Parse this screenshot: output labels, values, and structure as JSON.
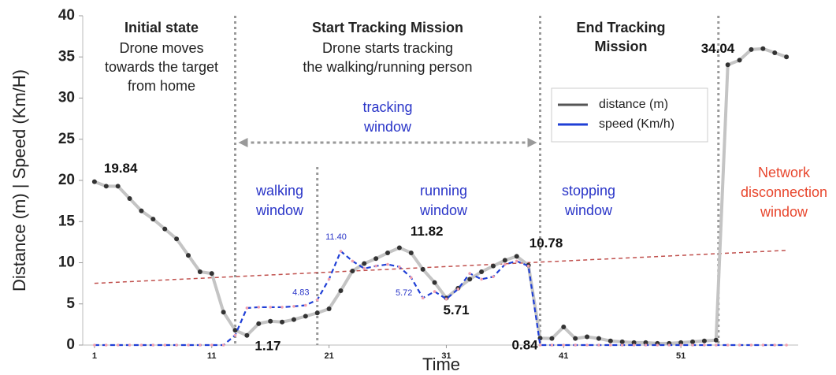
{
  "chart_data": {
    "type": "line",
    "x_label": "Time",
    "y_label": "Distance (m) | Speed (Km/H)",
    "xlim": [
      0,
      61
    ],
    "ylim": [
      0,
      40
    ],
    "xticks": [
      1,
      11,
      21,
      31,
      41,
      51
    ],
    "yticks": [
      0,
      5,
      10,
      15,
      20,
      25,
      30,
      35,
      40
    ],
    "x": [
      1,
      2,
      3,
      4,
      5,
      6,
      7,
      8,
      9,
      10,
      11,
      12,
      13,
      14,
      15,
      16,
      17,
      18,
      19,
      20,
      21,
      22,
      23,
      24,
      25,
      26,
      27,
      28,
      29,
      30,
      31,
      32,
      33,
      34,
      35,
      36,
      37,
      38,
      39,
      40,
      41,
      42,
      43,
      44,
      45,
      46,
      47,
      48,
      49,
      50,
      51,
      52,
      53,
      54,
      55,
      56,
      57,
      58,
      59,
      60
    ],
    "series": [
      {
        "name": "distance (m)",
        "color": "#c4c4c4",
        "marker_color": "#333333",
        "legend_color": "#555555",
        "values": [
          19.84,
          19.3,
          19.3,
          17.8,
          16.3,
          15.3,
          14.1,
          12.9,
          10.9,
          8.9,
          8.7,
          4.0,
          1.8,
          1.17,
          2.6,
          2.9,
          2.8,
          3.1,
          3.5,
          3.9,
          4.4,
          6.6,
          9.0,
          9.9,
          10.5,
          11.2,
          11.82,
          11.2,
          9.2,
          7.6,
          5.71,
          6.9,
          8.0,
          8.9,
          9.6,
          10.3,
          10.78,
          9.7,
          0.84,
          0.8,
          2.2,
          0.8,
          1.0,
          0.8,
          0.5,
          0.4,
          0.3,
          0.3,
          0.2,
          0.2,
          0.3,
          0.4,
          0.5,
          0.6,
          34.04,
          34.6,
          35.9,
          36.0,
          35.5,
          35.0
        ],
        "value_labels": [
          "19.84",
          null,
          null,
          null,
          null,
          null,
          null,
          null,
          null,
          null,
          null,
          null,
          null,
          "1.17",
          null,
          null,
          null,
          null,
          null,
          null,
          null,
          null,
          null,
          null,
          null,
          null,
          "11.82",
          null,
          null,
          null,
          "5.71",
          null,
          null,
          null,
          null,
          null,
          "10.78",
          null,
          "0.84",
          null,
          null,
          null,
          null,
          null,
          null,
          null,
          null,
          null,
          null,
          null,
          null,
          null,
          null,
          null,
          "34.04",
          null,
          null,
          null,
          null,
          null
        ]
      },
      {
        "name": "speed (Km/h)",
        "color": "#1f3fd6",
        "marker_color": "#f0a0b0",
        "legend_color": "#1f3fd6",
        "values": [
          0,
          0,
          0,
          0,
          0,
          0,
          0,
          0,
          0,
          0,
          0,
          0,
          1.2,
          4.5,
          4.6,
          4.6,
          4.6,
          4.7,
          4.83,
          5.5,
          8.0,
          11.4,
          10.2,
          9.3,
          9.6,
          9.8,
          9.5,
          8.2,
          5.72,
          6.5,
          5.6,
          6.8,
          8.7,
          8.0,
          8.3,
          9.8,
          10.2,
          9.6,
          0,
          0,
          0,
          0,
          0,
          0,
          0,
          0,
          0,
          0,
          0,
          0,
          0,
          0,
          0,
          0,
          0,
          0,
          0,
          0,
          0,
          0
        ],
        "value_labels": [
          null,
          null,
          null,
          null,
          null,
          null,
          null,
          null,
          null,
          null,
          null,
          null,
          null,
          null,
          null,
          null,
          null,
          null,
          "4.83",
          null,
          null,
          "11.40",
          null,
          null,
          null,
          null,
          null,
          null,
          "5.72",
          null,
          null,
          null,
          null,
          null,
          null,
          null,
          null,
          null,
          null,
          null,
          null,
          null,
          null,
          null,
          null,
          null,
          null,
          null,
          null,
          null,
          null,
          null,
          null,
          null,
          null,
          null,
          null,
          null,
          null,
          null
        ]
      }
    ],
    "trend": {
      "x": [
        1,
        60
      ],
      "values": [
        7.5,
        11.5
      ],
      "color": "#c0504d"
    },
    "vlines": [
      13,
      20,
      39,
      54.2
    ],
    "annotations": [
      {
        "text": "Initial state"
      },
      {
        "text": "Drone  moves"
      },
      {
        "text": "towards the target"
      },
      {
        "text": "from home"
      },
      {
        "text": "Start Tracking Mission"
      },
      {
        "text": "Drone  starts tracking"
      },
      {
        "text": "the walking/running person"
      },
      {
        "text": "End Tracking"
      },
      {
        "text": "Mission"
      },
      {
        "text": "tracking"
      },
      {
        "text": "window"
      },
      {
        "text": "walking"
      },
      {
        "text": "window"
      },
      {
        "text": "running"
      },
      {
        "text": "window"
      },
      {
        "text": "stopping"
      },
      {
        "text": "window"
      },
      {
        "text": "Network"
      },
      {
        "text": "disconnection"
      },
      {
        "text": "window"
      }
    ]
  }
}
